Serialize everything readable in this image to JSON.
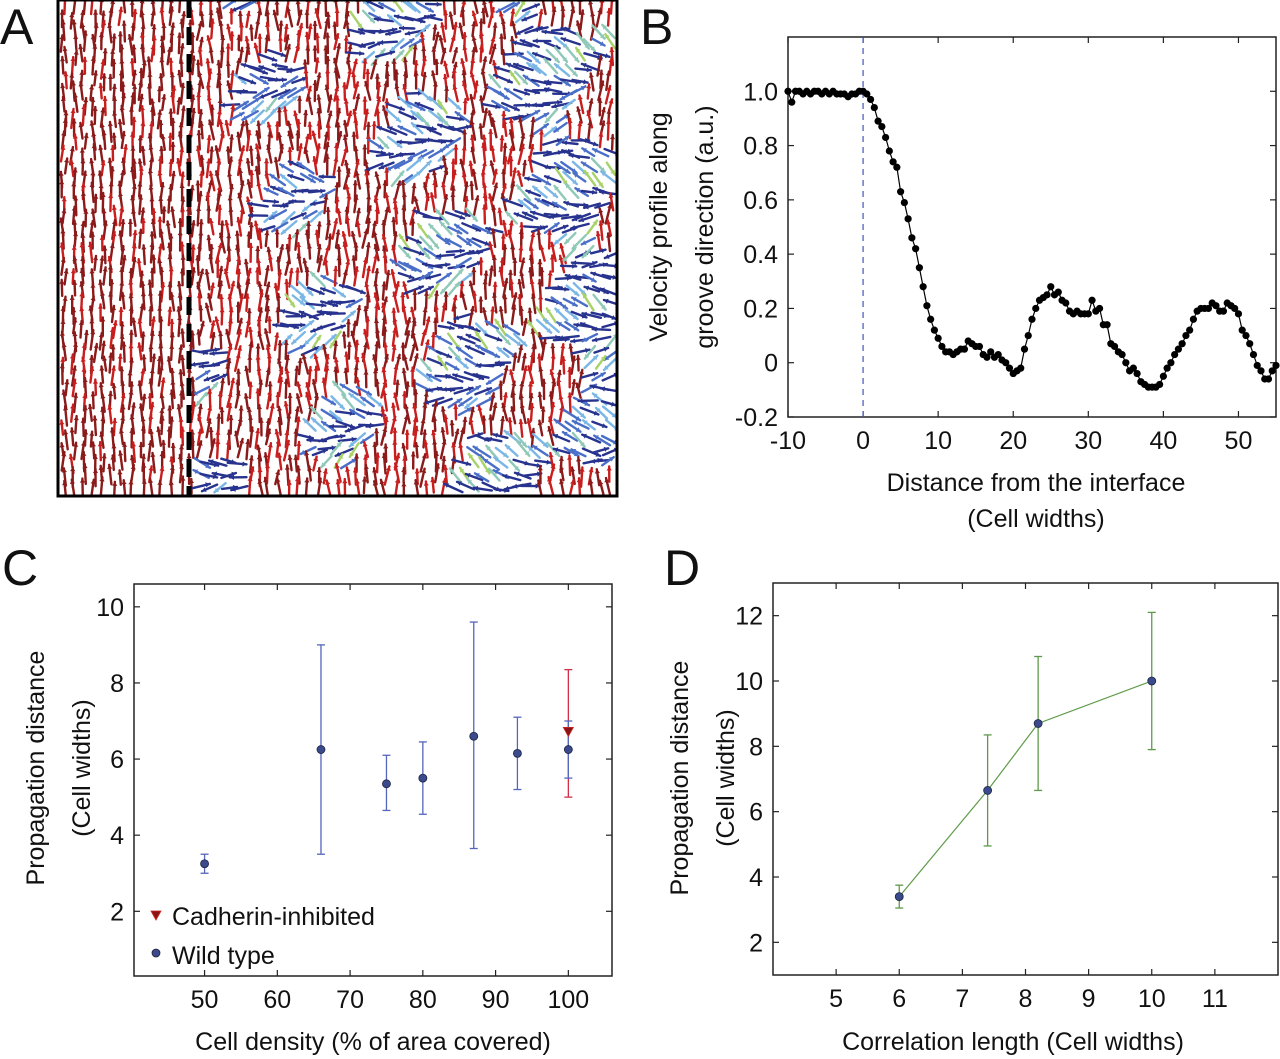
{
  "figure": {
    "panels": [
      "A",
      "B",
      "C",
      "D"
    ]
  },
  "chart_data": [
    {
      "panel": "A",
      "type": "vector-field",
      "title": "",
      "description": "Cell orientation map colored by angle; left of dashed interface cells aligned with grooves (dark red, vertical), right side disordered",
      "interface_marker": "dashed vertical line",
      "colormap": [
        "#7f1010",
        "#c81e1e",
        "#e8541e",
        "#f2a93b",
        "#eadb2a",
        "#a8d26a",
        "#8fc9b8",
        "#7ab7e6",
        "#4a6fc8",
        "#27338e"
      ],
      "aligned_color": "#8b1a1a"
    },
    {
      "panel": "B",
      "type": "line",
      "title": "",
      "xlabel": "Distance from the interface",
      "xlabel2": "(Cell widths)",
      "ylabel": "Velocity profile along",
      "ylabel2": "groove direction (a.u.)",
      "xlim": [
        -10,
        55
      ],
      "ylim": [
        -0.2,
        1.2
      ],
      "xticks": [
        -10,
        0,
        10,
        20,
        30,
        40,
        50
      ],
      "xtick_labels": [
        "-10",
        "0",
        "10",
        "20",
        "30",
        "40",
        "50"
      ],
      "yticks": [
        -0.2,
        0,
        0.2,
        0.4,
        0.6,
        0.8,
        1.0
      ],
      "ytick_labels": [
        "-0.2",
        "0",
        "0.2",
        "0.4",
        "0.6",
        "0.8",
        "1.0"
      ],
      "vline": 0,
      "vline_color": "#4455bb",
      "series": [
        {
          "name": "velocity profile",
          "color": "#000000",
          "x": [
            -10,
            -9.5,
            -9,
            -8.5,
            -8,
            -7.5,
            -7,
            -6.5,
            -6,
            -5.5,
            -5,
            -4.5,
            -4,
            -3.5,
            -3,
            -2.5,
            -2,
            -1.5,
            -1,
            -0.5,
            0,
            0.5,
            1,
            1.5,
            2,
            2.5,
            3,
            3.5,
            4,
            4.5,
            5,
            5.5,
            6,
            6.5,
            7,
            7.5,
            8,
            8.5,
            9,
            9.5,
            10,
            10.5,
            11,
            11.5,
            12,
            12.5,
            13,
            13.5,
            14,
            14.5,
            15,
            15.5,
            16,
            16.5,
            17,
            17.5,
            18,
            18.5,
            19,
            19.5,
            20,
            20.5,
            21,
            21.5,
            22,
            22.5,
            23,
            23.5,
            24,
            24.5,
            25,
            25.5,
            26,
            26.5,
            27,
            27.5,
            28,
            28.5,
            29,
            29.5,
            30,
            30.5,
            31,
            31.5,
            32,
            32.5,
            33,
            33.5,
            34,
            34.5,
            35,
            35.5,
            36,
            36.5,
            37,
            37.5,
            38,
            38.5,
            39,
            39.5,
            40,
            40.5,
            41,
            41.5,
            42,
            42.5,
            43,
            43.5,
            44,
            44.5,
            45,
            45.5,
            46,
            46.5,
            47,
            47.5,
            48,
            48.5,
            49,
            49.5,
            50,
            50.5,
            51,
            51.5,
            52,
            52.5,
            53,
            53.5,
            54,
            54.5,
            55
          ],
          "y": [
            1.0,
            0.96,
            1.0,
            1.0,
            0.99,
            1.0,
            0.99,
            1.0,
            1.0,
            0.99,
            1.0,
            0.99,
            1.0,
            0.99,
            0.99,
            0.99,
            0.98,
            0.99,
            0.99,
            1.0,
            1.0,
            0.99,
            0.97,
            0.94,
            0.89,
            0.87,
            0.83,
            0.78,
            0.74,
            0.72,
            0.63,
            0.59,
            0.53,
            0.46,
            0.42,
            0.35,
            0.28,
            0.21,
            0.16,
            0.12,
            0.09,
            0.06,
            0.04,
            0.04,
            0.03,
            0.04,
            0.05,
            0.05,
            0.08,
            0.07,
            0.06,
            0.06,
            0.03,
            0.02,
            0.04,
            0.02,
            0.03,
            0.01,
            0.0,
            -0.02,
            -0.04,
            -0.03,
            -0.02,
            0.05,
            0.1,
            0.16,
            0.2,
            0.23,
            0.24,
            0.25,
            0.28,
            0.25,
            0.26,
            0.23,
            0.22,
            0.19,
            0.18,
            0.19,
            0.18,
            0.18,
            0.18,
            0.23,
            0.19,
            0.2,
            0.14,
            0.14,
            0.07,
            0.06,
            0.04,
            0.03,
            0.0,
            -0.03,
            -0.02,
            -0.04,
            -0.07,
            -0.08,
            -0.09,
            -0.09,
            -0.09,
            -0.08,
            -0.05,
            -0.02,
            0.0,
            0.03,
            0.05,
            0.07,
            0.1,
            0.12,
            0.16,
            0.19,
            0.2,
            0.2,
            0.2,
            0.22,
            0.21,
            0.19,
            0.19,
            0.22,
            0.21,
            0.2,
            0.18,
            0.12,
            0.1,
            0.07,
            0.03,
            -0.01,
            -0.03,
            -0.06,
            -0.06,
            -0.03,
            -0.01
          ]
        }
      ]
    },
    {
      "panel": "C",
      "type": "scatter",
      "title": "",
      "xlabel": "Cell density (% of area covered)",
      "ylabel": "Propagation distance",
      "ylabel2": "(Cell widths)",
      "xlim": [
        40.3,
        106
      ],
      "ylim": [
        0.3,
        10.6
      ],
      "xticks": [
        50,
        60,
        70,
        80,
        90,
        100
      ],
      "xtick_labels": [
        "50",
        "60",
        "70",
        "80",
        "90",
        "100"
      ],
      "yticks": [
        2,
        4,
        6,
        8,
        10
      ],
      "ytick_labels": [
        "2",
        "4",
        "6",
        "8",
        "10"
      ],
      "legend": {
        "position": "bottom-left",
        "entries": [
          "Cadherin-inhibited",
          "Wild type"
        ]
      },
      "series": [
        {
          "name": "Wild type",
          "marker": "circle",
          "color": "#3a4a8a",
          "errorbar_color": "#5566bb",
          "x": [
            50,
            66,
            75,
            80,
            87,
            93,
            100
          ],
          "y": [
            3.25,
            6.25,
            5.35,
            5.5,
            6.6,
            6.15,
            6.25
          ],
          "yerr_low": [
            3.0,
            3.5,
            4.65,
            4.55,
            3.65,
            5.2,
            5.5
          ],
          "yerr_high": [
            3.5,
            9.0,
            6.1,
            6.45,
            9.6,
            7.1,
            7.0
          ]
        },
        {
          "name": "Cadherin-inhibited",
          "marker": "triangle-down",
          "color": "#8b1515",
          "errorbar_color": "#d0304a",
          "x": [
            100
          ],
          "y": [
            6.7
          ],
          "yerr_low": [
            5.0
          ],
          "yerr_high": [
            8.35
          ]
        }
      ]
    },
    {
      "panel": "D",
      "type": "line",
      "title": "",
      "xlabel": "Correlation length (Cell widths)",
      "ylabel": "Propagation distance",
      "ylabel2": "(Cell widths)",
      "xlim": [
        4,
        12
      ],
      "ylim": [
        1,
        13
      ],
      "xticks": [
        5,
        6,
        7,
        8,
        9,
        10,
        11
      ],
      "xtick_labels": [
        "5",
        "6",
        "7",
        "8",
        "9",
        "10",
        "11"
      ],
      "yticks": [
        2,
        4,
        6,
        8,
        10,
        12
      ],
      "ytick_labels": [
        "2",
        "4",
        "6",
        "8",
        "10",
        "12"
      ],
      "series": [
        {
          "name": "propagation vs correlation",
          "marker": "circle",
          "color": "#3a4a8a",
          "line_color": "#5f9a4a",
          "x": [
            6.0,
            7.4,
            8.2,
            10.0
          ],
          "y": [
            3.4,
            6.65,
            8.7,
            10.0
          ],
          "yerr_low": [
            3.05,
            4.95,
            6.65,
            7.9
          ],
          "yerr_high": [
            3.75,
            8.35,
            10.75,
            12.1
          ]
        }
      ]
    }
  ]
}
